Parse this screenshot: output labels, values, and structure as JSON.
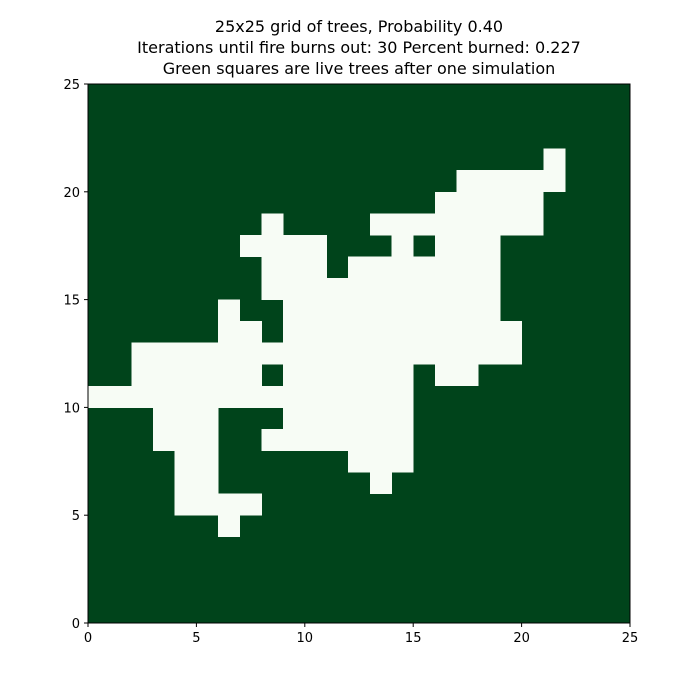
{
  "chart_data": {
    "type": "heatmap",
    "title": [
      "25x25 grid of trees, Probability 0.40",
      "Iterations until fire burns out: 30 Percent burned: 0.227",
      "Green squares are live trees after one simulation"
    ],
    "xlabel": "",
    "ylabel": "",
    "xlim": [
      0,
      25
    ],
    "ylim": [
      0,
      25
    ],
    "x_ticks": [
      0,
      5,
      10,
      15,
      20,
      25
    ],
    "y_ticks": [
      0,
      5,
      10,
      15,
      20,
      25
    ],
    "grid_size": 25,
    "colors": {
      "live_tree": "#00441b",
      "burned": "#f7fcf5"
    },
    "burned_cells_by_row": [
      {
        "y": 4,
        "ranges": [
          [
            6,
            7
          ]
        ]
      },
      {
        "y": 5,
        "ranges": [
          [
            4,
            8
          ]
        ]
      },
      {
        "y": 6,
        "ranges": [
          [
            4,
            6
          ],
          [
            13,
            14
          ]
        ]
      },
      {
        "y": 7,
        "ranges": [
          [
            4,
            6
          ],
          [
            12,
            15
          ]
        ]
      },
      {
        "y": 8,
        "ranges": [
          [
            3,
            6
          ],
          [
            8,
            15
          ]
        ]
      },
      {
        "y": 9,
        "ranges": [
          [
            3,
            6
          ],
          [
            9,
            15
          ]
        ]
      },
      {
        "y": 10,
        "ranges": [
          [
            0,
            15
          ]
        ]
      },
      {
        "y": 11,
        "ranges": [
          [
            2,
            8
          ],
          [
            9,
            15
          ],
          [
            16,
            18
          ]
        ]
      },
      {
        "y": 12,
        "ranges": [
          [
            2,
            20
          ]
        ]
      },
      {
        "y": 13,
        "ranges": [
          [
            6,
            8
          ],
          [
            9,
            20
          ]
        ]
      },
      {
        "y": 14,
        "ranges": [
          [
            6,
            7
          ],
          [
            9,
            19
          ]
        ]
      },
      {
        "y": 15,
        "ranges": [
          [
            8,
            19
          ]
        ]
      },
      {
        "y": 16,
        "ranges": [
          [
            8,
            11
          ],
          [
            12,
            19
          ]
        ]
      },
      {
        "y": 17,
        "ranges": [
          [
            7,
            11
          ],
          [
            14,
            15
          ],
          [
            16,
            19
          ]
        ]
      },
      {
        "y": 18,
        "ranges": [
          [
            8,
            9
          ],
          [
            13,
            21
          ]
        ]
      },
      {
        "y": 19,
        "ranges": [
          [
            16,
            21
          ]
        ]
      },
      {
        "y": 20,
        "ranges": [
          [
            17,
            22
          ]
        ]
      },
      {
        "y": 21,
        "ranges": [
          [
            21,
            22
          ]
        ]
      }
    ]
  }
}
